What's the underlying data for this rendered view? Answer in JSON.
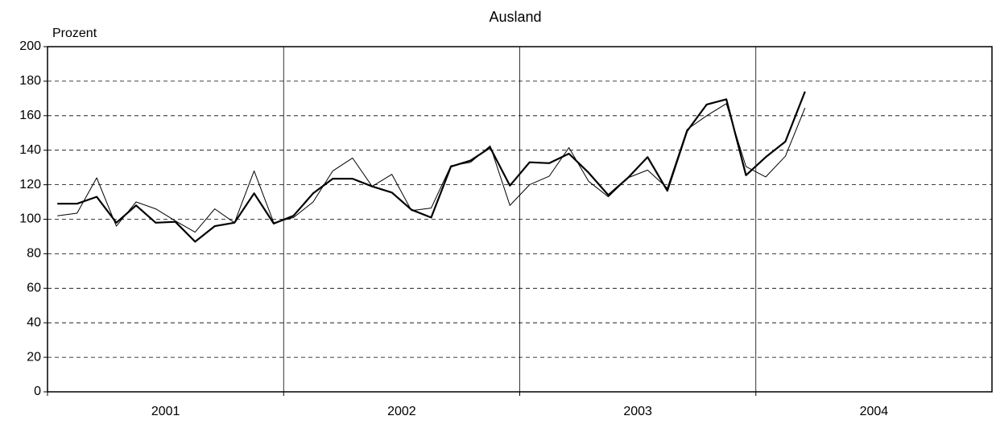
{
  "chart_data": {
    "type": "line",
    "title": "Ausland",
    "y_label": "Prozent",
    "year_labels": [
      "2001",
      "2002",
      "2003",
      "2004"
    ],
    "categories": [
      null,
      null,
      null,
      null,
      null,
      null,
      null,
      null,
      null,
      null,
      null,
      null,
      null,
      null,
      null,
      null,
      null,
      null,
      null,
      null,
      null,
      null,
      null,
      null,
      null,
      null,
      null,
      null,
      null,
      null,
      null,
      null,
      null,
      null,
      null,
      null,
      null,
      null,
      null
    ],
    "series": [
      {
        "color": "#000000",
        "values": [
          102,
          103.5,
          124,
          96,
          110,
          106,
          99,
          92.5,
          106,
          98,
          128,
          98,
          101,
          110,
          128,
          135.5,
          119,
          126,
          105,
          106.5,
          131,
          133,
          142.5,
          108,
          120,
          125,
          141.5,
          122,
          113,
          124,
          128.5,
          118,
          152,
          160,
          167,
          130.5,
          124.5,
          136.5,
          164.5
        ]
      },
      {
        "color": "#000000",
        "values": [
          109,
          109,
          113,
          98,
          108,
          98,
          98.5,
          87,
          96,
          98,
          115,
          97.5,
          102,
          115,
          123.5,
          123.5,
          119,
          115.5,
          105.5,
          101,
          130.5,
          134,
          141.5,
          119.5,
          133,
          132.5,
          138,
          127,
          114,
          124,
          136,
          116.5,
          151,
          166.5,
          169.5,
          125.5,
          136,
          145,
          174
        ]
      }
    ],
    "ylim": [
      0,
      200
    ],
    "yticks": [
      0,
      20,
      40,
      60,
      80,
      100,
      120,
      140,
      160,
      180,
      200
    ],
    "grid": true
  }
}
